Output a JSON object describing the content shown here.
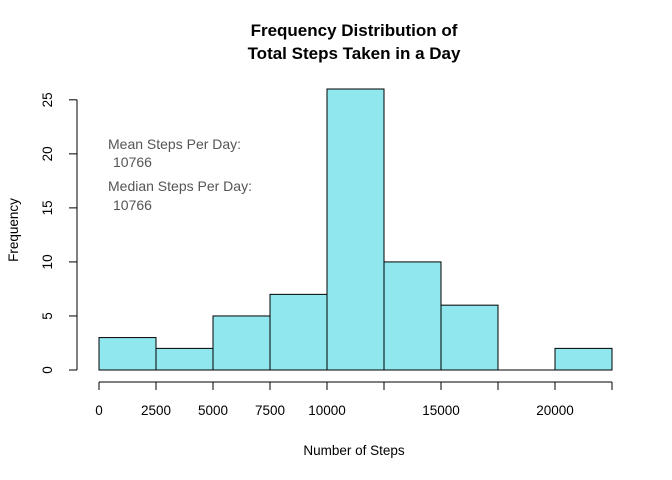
{
  "chart_data": {
    "type": "bar",
    "title": [
      "Frequency Distribution of",
      "Total Steps Taken in a Day"
    ],
    "xlabel": "Number of Steps",
    "ylabel": "Frequency",
    "bin_width": 2500,
    "bins": [
      {
        "start": 0,
        "end": 2500,
        "value": 3
      },
      {
        "start": 2500,
        "end": 5000,
        "value": 2
      },
      {
        "start": 5000,
        "end": 7500,
        "value": 5
      },
      {
        "start": 7500,
        "end": 10000,
        "value": 7
      },
      {
        "start": 10000,
        "end": 12500,
        "value": 26
      },
      {
        "start": 12500,
        "end": 15000,
        "value": 10
      },
      {
        "start": 15000,
        "end": 17500,
        "value": 6
      },
      {
        "start": 17500,
        "end": 20000,
        "value": 0
      },
      {
        "start": 20000,
        "end": 22500,
        "value": 2
      }
    ],
    "xlim": [
      0,
      22500
    ],
    "ylim": [
      0,
      26
    ],
    "x_ticks": [
      0,
      2500,
      5000,
      7500,
      10000,
      12500,
      15000,
      17500,
      20000,
      22500
    ],
    "x_tick_labels": [
      "0",
      "2500",
      "5000",
      "7500",
      "10000",
      "15000",
      "20000"
    ],
    "x_tick_label_values": [
      0,
      2500,
      5000,
      7500,
      10000,
      15000,
      20000
    ],
    "y_ticks": [
      0,
      5,
      10,
      15,
      20,
      25
    ],
    "y_tick_labels": [
      "0",
      "5",
      "10",
      "15",
      "20",
      "25"
    ],
    "bar_color": "#90E8EE",
    "bar_stroke": "#000000",
    "grid": false,
    "annotations": [
      {
        "label": "Mean Steps Per Day:",
        "value": "10766"
      },
      {
        "label": "Median Steps Per Day:",
        "value": "10766"
      }
    ],
    "annotation_color": "#555555"
  }
}
